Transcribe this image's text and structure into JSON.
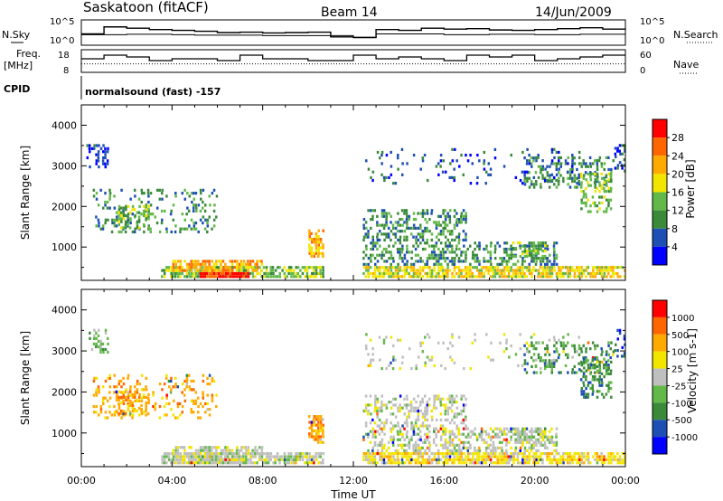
{
  "header": {
    "title": "Saskatoon (fitACF)",
    "beam": "Beam 14",
    "date": "14/Jun/2009"
  },
  "left_labels": {
    "nsky": "N.Sky",
    "freq": "Freq.",
    "freq_unit": "[MHz]",
    "cpid": "CPID"
  },
  "right_labels": {
    "nsearch": "N.Search",
    "nave": "Nave"
  },
  "cpid_text": "normalsound (fast) -157",
  "colors": {
    "power_scale": [
      "#0000ff",
      "#1d4fb4",
      "#3a8a3a",
      "#63b84a",
      "#f2e600",
      "#ffaa00",
      "#ff6600",
      "#ff0000"
    ],
    "velocity_scale": [
      "#0000ff",
      "#1d4fb4",
      "#3a8a3a",
      "#63b84a",
      "#bfbfbf",
      "#f2e600",
      "#ffaa00",
      "#ff6600",
      "#ff0000"
    ]
  },
  "chart_data": [
    {
      "type": "line",
      "panel": "noise",
      "left_axis": "N.Sky",
      "right_axis": "N.Search",
      "y_ticks_left": [
        "10^5",
        "10^0"
      ],
      "y_ticks_right": [
        "10^5",
        "10^0"
      ],
      "x_range": [
        0,
        24
      ],
      "series": [
        {
          "name": "N.Sky",
          "x": [
            0,
            1,
            2,
            3,
            4,
            5,
            6,
            7,
            8,
            9,
            10,
            11,
            12,
            13,
            14,
            15,
            16,
            17,
            18,
            19,
            20,
            21,
            22,
            23,
            24
          ],
          "values": [
            2.2,
            3.8,
            3.5,
            3.2,
            3.0,
            2.8,
            2.5,
            2.6,
            2.4,
            2.5,
            2.6,
            1.5,
            1.4,
            3.2,
            3.0,
            3.5,
            3.3,
            3.4,
            3.1,
            3.0,
            3.2,
            3.4,
            3.6,
            3.3,
            3.2
          ]
        },
        {
          "name": "N.Search",
          "x": [
            0,
            1,
            2,
            4,
            5,
            6,
            8,
            10,
            12,
            13,
            16,
            18,
            20,
            22,
            24
          ],
          "values": [
            2.0,
            2.0,
            2.1,
            2.0,
            1.9,
            1.9,
            1.8,
            1.8,
            1.3,
            2.2,
            2.0,
            2.1,
            2.0,
            2.1,
            2.0
          ]
        }
      ]
    },
    {
      "type": "line",
      "panel": "frequency",
      "left_axis": "Freq. [MHz]",
      "right_axis": "Nave",
      "y_ticks_left": [
        18,
        8
      ],
      "y_ticks_right": [
        60,
        0
      ],
      "series": [
        {
          "name": "Freq.",
          "x": [
            0,
            1,
            2,
            3,
            4,
            5,
            6,
            7,
            8,
            9,
            10,
            11,
            12,
            13,
            14,
            15,
            16,
            17,
            18,
            19,
            20,
            21,
            22,
            23,
            24
          ],
          "values": [
            15,
            17,
            16,
            14,
            15,
            15,
            14,
            17,
            15,
            15,
            14,
            14,
            17,
            15,
            16,
            15,
            14,
            17,
            16,
            17,
            14,
            15,
            16,
            17,
            17
          ]
        },
        {
          "name": "Nave",
          "x": [
            0,
            24
          ],
          "values": [
            25,
            25
          ]
        }
      ]
    },
    {
      "type": "heatmap",
      "panel": "power",
      "xlabel": "",
      "ylabel": "Slant Range [km]",
      "x_range": [
        0,
        24
      ],
      "ylim": [
        180,
        4500
      ],
      "y_ticks": [
        1000,
        2000,
        3000,
        4000
      ],
      "colorbar_label": "Power [dB]",
      "colorbar_ticks": [
        4,
        8,
        12,
        16,
        20,
        24,
        28
      ],
      "colorbar_range": [
        0,
        32
      ],
      "no_data_interval": [
        10.7,
        12.4
      ]
    },
    {
      "type": "heatmap",
      "panel": "velocity",
      "xlabel": "Time UT",
      "ylabel": "Slant Range [km]",
      "x_range": [
        0,
        24
      ],
      "x_ticks": [
        "00:00",
        "04:00",
        "08:00",
        "12:00",
        "16:00",
        "20:00",
        "00:00"
      ],
      "ylim": [
        180,
        4500
      ],
      "y_ticks": [
        1000,
        2000,
        3000,
        4000
      ],
      "colorbar_label": "Velocity [m s-1]",
      "colorbar_ticks": [
        "1000",
        "500",
        "100",
        "25",
        "-25",
        "-100",
        "-500",
        "-1000"
      ],
      "no_data_interval": [
        10.7,
        12.4
      ]
    }
  ]
}
